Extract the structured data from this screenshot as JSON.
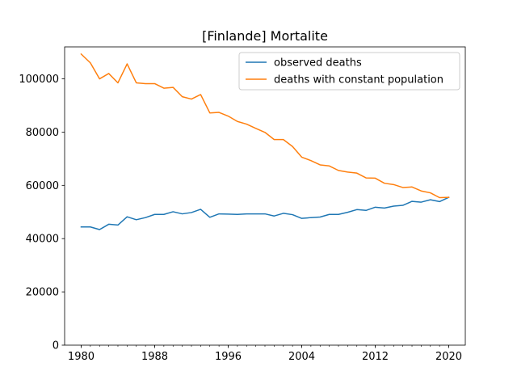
{
  "chart_data": {
    "type": "line",
    "title": "[Finlande] Mortalite",
    "xlabel": "",
    "ylabel": "",
    "xlim": [
      1978.2,
      2021.8
    ],
    "ylim": [
      0,
      112000
    ],
    "xticks": [
      1980,
      1988,
      1996,
      2004,
      2012,
      2020
    ],
    "xticks_minor": [
      1980,
      1981,
      1982,
      1983,
      1984,
      1985,
      1986,
      1987,
      1988,
      1989,
      1990,
      1991,
      1992,
      1993,
      1994,
      1995,
      1996,
      1997,
      1998,
      1999,
      2000,
      2001,
      2002,
      2003,
      2004,
      2005,
      2006,
      2007,
      2008,
      2009,
      2010,
      2011,
      2012,
      2013,
      2014,
      2015,
      2016,
      2017,
      2018,
      2019,
      2020
    ],
    "yticks": [
      0,
      20000,
      40000,
      60000,
      80000,
      100000
    ],
    "grid": false,
    "legend_position": "upper right",
    "x": [
      1980,
      1981,
      1982,
      1983,
      1984,
      1985,
      1986,
      1987,
      1988,
      1989,
      1990,
      1991,
      1992,
      1993,
      1994,
      1995,
      1996,
      1997,
      1998,
      1999,
      2000,
      2001,
      2002,
      2003,
      2004,
      2005,
      2006,
      2007,
      2008,
      2009,
      2010,
      2011,
      2012,
      2013,
      2014,
      2015,
      2016,
      2017,
      2018,
      2019,
      2020
    ],
    "series": [
      {
        "name": "observed deaths",
        "color": "#1f77b4",
        "values": [
          44400,
          44400,
          43400,
          45400,
          45100,
          48200,
          47100,
          47900,
          49100,
          49100,
          50100,
          49300,
          49800,
          51000,
          48000,
          49300,
          49200,
          49100,
          49300,
          49300,
          49300,
          48500,
          49500,
          49000,
          47600,
          47900,
          48100,
          49100,
          49100,
          49900,
          50900,
          50600,
          51800,
          51500,
          52200,
          52500,
          54000,
          53700,
          54600,
          53900,
          55500
        ]
      },
      {
        "name": "deaths with constant population",
        "color": "#ff7f0e",
        "values": [
          109300,
          106000,
          100000,
          102000,
          98500,
          105600,
          98500,
          98200,
          98200,
          96500,
          96800,
          93300,
          92400,
          94100,
          87200,
          87400,
          86000,
          84000,
          83000,
          81400,
          79900,
          77200,
          77200,
          74600,
          70600,
          69300,
          67700,
          67300,
          65600,
          65000,
          64600,
          62800,
          62700,
          60800,
          60300,
          59200,
          59400,
          57900,
          57200,
          55400,
          55500
        ]
      }
    ]
  }
}
